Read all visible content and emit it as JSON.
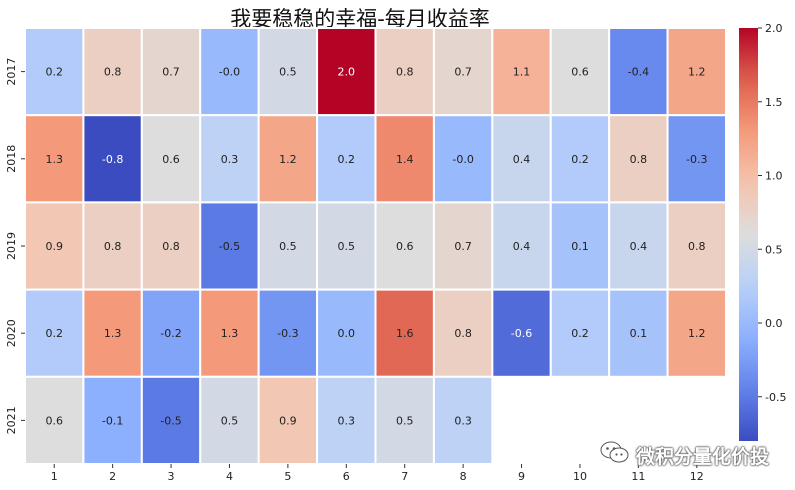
{
  "chart_data": {
    "type": "heatmap",
    "title": "我要稳稳的幸福-每月收益率",
    "x_categories": [
      "1",
      "2",
      "3",
      "4",
      "5",
      "6",
      "7",
      "8",
      "9",
      "10",
      "11",
      "12"
    ],
    "y_categories": [
      "2017",
      "2018",
      "2019",
      "2020",
      "2021"
    ],
    "values": [
      [
        0.2,
        0.8,
        0.7,
        -0.0,
        0.5,
        2.0,
        0.8,
        0.7,
        1.1,
        0.6,
        -0.4,
        1.2
      ],
      [
        1.3,
        -0.8,
        0.6,
        0.3,
        1.2,
        0.2,
        1.4,
        -0.0,
        0.4,
        0.2,
        0.8,
        -0.3
      ],
      [
        0.9,
        0.8,
        0.8,
        -0.5,
        0.5,
        0.5,
        0.6,
        0.7,
        0.4,
        0.1,
        0.4,
        0.8
      ],
      [
        0.2,
        1.3,
        -0.2,
        1.3,
        -0.3,
        0.0,
        1.6,
        0.8,
        -0.6,
        0.2,
        0.1,
        1.2
      ],
      [
        0.6,
        -0.1,
        -0.5,
        0.5,
        0.9,
        0.3,
        0.5,
        0.3,
        null,
        null,
        null,
        null
      ]
    ],
    "cell_labels": [
      [
        "0.2",
        "0.8",
        "0.7",
        "-0.0",
        "0.5",
        "2.0",
        "0.8",
        "0.7",
        "1.1",
        "0.6",
        "-0.4",
        "1.2"
      ],
      [
        "1.3",
        "-0.8",
        "0.6",
        "0.3",
        "1.2",
        "0.2",
        "1.4",
        "-0.0",
        "0.4",
        "0.2",
        "0.8",
        "-0.3"
      ],
      [
        "0.9",
        "0.8",
        "0.8",
        "-0.5",
        "0.5",
        "0.5",
        "0.6",
        "0.7",
        "0.4",
        "0.1",
        "0.4",
        "0.8"
      ],
      [
        "0.2",
        "1.3",
        "-0.2",
        "1.3",
        "-0.3",
        "0.0",
        "1.6",
        "0.8",
        "-0.6",
        "0.2",
        "0.1",
        "1.2"
      ],
      [
        "0.6",
        "-0.1",
        "-0.5",
        "0.5",
        "0.9",
        "0.3",
        "0.5",
        "0.3",
        null,
        null,
        null,
        null
      ]
    ],
    "colormap": "coolwarm",
    "vmin": -0.8,
    "vmax": 2.0,
    "colorbar_ticks": [
      "-0.5",
      "0.0",
      "0.5",
      "1.0",
      "1.5",
      "2.0"
    ],
    "grid_line_color": "#ffffff"
  },
  "watermark": {
    "text": "微积分量化价投",
    "icon": "wechat-icon"
  }
}
